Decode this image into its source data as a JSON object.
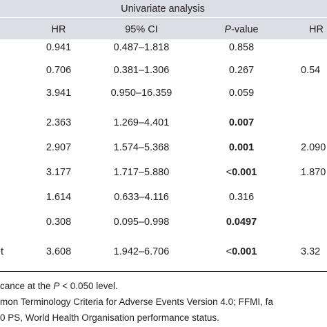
{
  "header": {
    "group_title": "Univariate analysis",
    "columns": {
      "hr": "HR",
      "ci": "95% CI",
      "p_italic": "P",
      "p_rest": "-value",
      "hr2": "HR"
    }
  },
  "rows": [
    {
      "hr": "0.941",
      "ci": "0.487–1.818",
      "p_prefix": "",
      "p": "0.858",
      "p_bold": false,
      "hr2": ""
    },
    {
      "hr": "0.706",
      "ci": "0.381–1.306",
      "p_prefix": "",
      "p": "0.267",
      "p_bold": false,
      "hr2": "0.54"
    },
    {
      "hr": "3.941",
      "ci": "0.950–16.359",
      "p_prefix": "",
      "p": "0.059",
      "p_bold": false,
      "hr2": ""
    },
    {
      "hr": "2.363",
      "ci": "1.269–4.401",
      "p_prefix": "",
      "p": "0.007",
      "p_bold": true,
      "hr2": ""
    },
    {
      "hr": "2.907",
      "ci": "1.574–5.368",
      "p_prefix": "",
      "p": "0.001",
      "p_bold": true,
      "hr2": "2.090"
    },
    {
      "hr": "3.177",
      "ci": "1.717–5.880",
      "p_prefix": "<",
      "p": "0.001",
      "p_bold": true,
      "hr2": "1.870"
    },
    {
      "hr": "1.614",
      "ci": "0.633–4.116",
      "p_prefix": "",
      "p": "0.316",
      "p_bold": false,
      "hr2": ""
    },
    {
      "hr": "0.308",
      "ci": "0.095–0.998",
      "p_prefix": "",
      "p": "0.0497",
      "p_bold": true,
      "hr2": ""
    },
    {
      "label_tail": "t",
      "hr": "3.608",
      "ci": "1.942–6.706",
      "p_prefix": "<",
      "p": "0.001",
      "p_bold": true,
      "hr2": "3.32"
    }
  ],
  "footnotes": {
    "line1_a": "cance at the ",
    "line1_p": "P",
    "line1_b": " < 0.050 level.",
    "line2": "mon Terminology Criteria for Adverse Events Version 4.0; FFMI, fa",
    "line3": "0 PS, World Health Organisation performance status."
  }
}
